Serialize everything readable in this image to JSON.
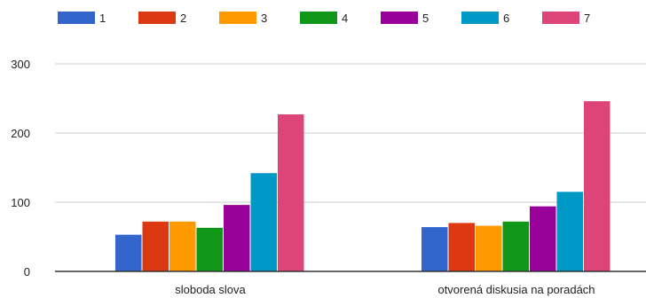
{
  "chart_data": {
    "type": "bar",
    "categories": [
      "sloboda slova",
      "otvorená diskusia na poradách"
    ],
    "series": [
      {
        "name": "1",
        "color": "#3366cc",
        "values": [
          53,
          64
        ]
      },
      {
        "name": "2",
        "color": "#dc3912",
        "values": [
          72,
          70
        ]
      },
      {
        "name": "3",
        "color": "#ff9900",
        "values": [
          72,
          66
        ]
      },
      {
        "name": "4",
        "color": "#109618",
        "values": [
          63,
          72
        ]
      },
      {
        "name": "5",
        "color": "#990099",
        "values": [
          96,
          94
        ]
      },
      {
        "name": "6",
        "color": "#0099c6",
        "values": [
          142,
          115
        ]
      },
      {
        "name": "7",
        "color": "#dd4477",
        "values": [
          227,
          246
        ]
      }
    ],
    "yticks": [
      "0",
      "100",
      "200",
      "300"
    ],
    "ylim": [
      0,
      300
    ],
    "grid": true,
    "legend_position": "top"
  }
}
